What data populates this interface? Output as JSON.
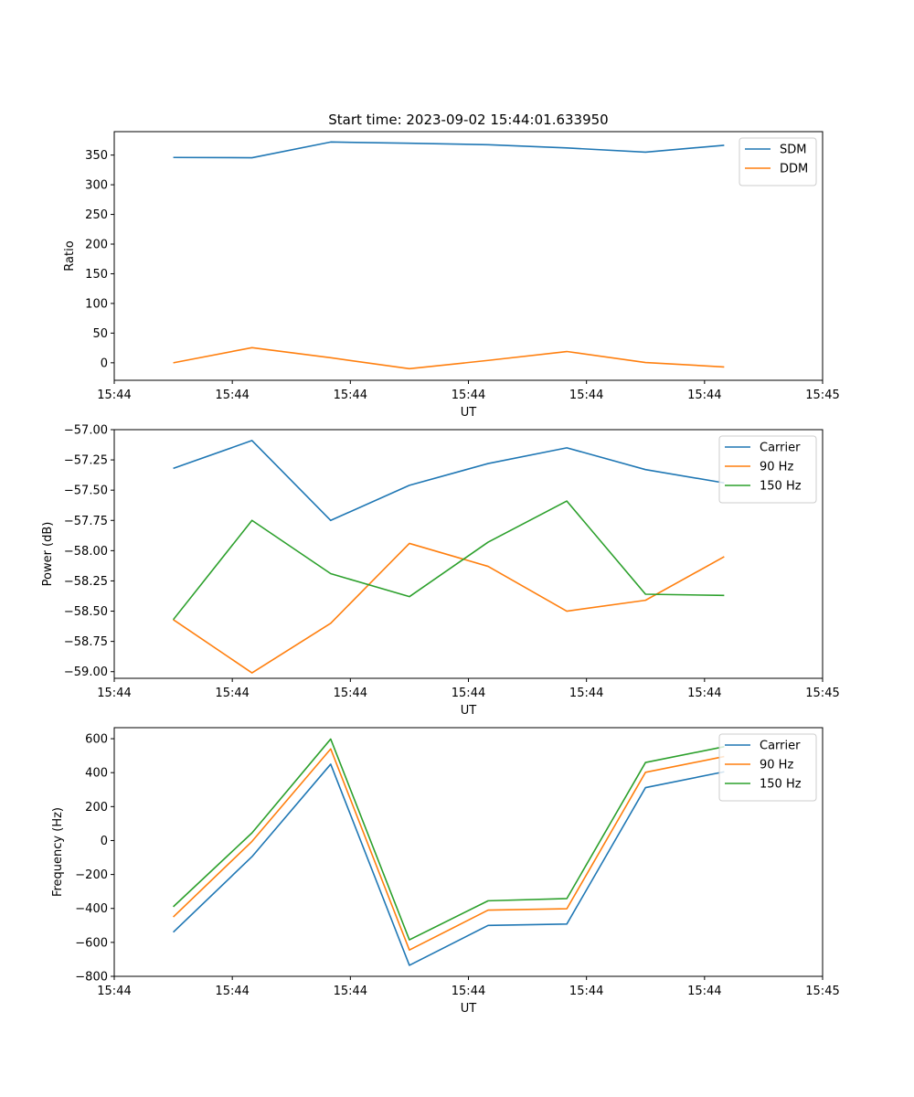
{
  "figure_title": "Start time: 2023-09-02 15:44:01.633950",
  "colors": {
    "c0": "#1f77b4",
    "c1": "#ff7f0e",
    "c2": "#2ca02c"
  },
  "chart_data": [
    {
      "type": "line",
      "xlabel": "UT",
      "ylabel": "Ratio",
      "xlim": [
        -0.75,
        8.25
      ],
      "ylim": [
        -29.5,
        389.5
      ],
      "x": [
        0,
        1,
        2,
        3,
        4,
        5,
        6,
        7
      ],
      "xticks": [
        -0.75,
        0.75,
        2.25,
        3.75,
        5.25,
        6.75,
        8.25
      ],
      "xticklabels": [
        "15:44",
        "15:44",
        "15:44",
        "15:44",
        "15:44",
        "15:44",
        "15:45"
      ],
      "yticks": [
        0,
        50,
        100,
        150,
        200,
        250,
        300,
        350
      ],
      "yticklabels": [
        "0",
        "50",
        "100",
        "150",
        "200",
        "250",
        "300",
        "350"
      ],
      "legend_position": "top-right",
      "series": [
        {
          "name": "SDM",
          "color": "#1f77b4",
          "values": [
            346,
            345.5,
            372,
            370,
            367.5,
            362,
            355,
            366.5
          ]
        },
        {
          "name": "DDM",
          "color": "#ff7f0e",
          "values": [
            0,
            25.5,
            8.5,
            -10,
            4,
            19,
            0.5,
            -7
          ]
        }
      ]
    },
    {
      "type": "line",
      "xlabel": "UT",
      "ylabel": "Power (dB)",
      "xlim": [
        -0.75,
        8.25
      ],
      "ylim": [
        -59.055,
        -57.0
      ],
      "x": [
        0,
        1,
        2,
        3,
        4,
        5,
        6,
        7
      ],
      "xticks": [
        -0.75,
        0.75,
        2.25,
        3.75,
        5.25,
        6.75,
        8.25
      ],
      "xticklabels": [
        "15:44",
        "15:44",
        "15:44",
        "15:44",
        "15:44",
        "15:44",
        "15:45"
      ],
      "yticks": [
        -57.0,
        -57.25,
        -57.5,
        -57.75,
        -58.0,
        -58.25,
        -58.5,
        -58.75,
        -59.0
      ],
      "yticklabels": [
        "−57.00",
        "−57.25",
        "−57.50",
        "−57.75",
        "−58.00",
        "−58.25",
        "−58.50",
        "−58.75",
        "−59.00"
      ],
      "legend_position": "top-right",
      "series": [
        {
          "name": "Carrier",
          "color": "#1f77b4",
          "values": [
            -57.32,
            -57.09,
            -57.75,
            -57.46,
            -57.28,
            -57.15,
            -57.33,
            -57.44
          ]
        },
        {
          "name": "90 Hz",
          "color": "#ff7f0e",
          "values": [
            -58.57,
            -59.01,
            -58.6,
            -57.94,
            -58.13,
            -58.5,
            -58.41,
            -58.05
          ]
        },
        {
          "name": "150 Hz",
          "color": "#2ca02c",
          "values": [
            -58.57,
            -57.75,
            -58.19,
            -58.38,
            -57.93,
            -57.59,
            -58.36,
            -58.37
          ]
        }
      ]
    },
    {
      "type": "line",
      "xlabel": "UT",
      "ylabel": "Frequency (Hz)",
      "xlim": [
        -0.75,
        8.25
      ],
      "ylim": [
        -800,
        665
      ],
      "x": [
        0,
        1,
        2,
        3,
        4,
        5,
        6,
        7
      ],
      "xticks": [
        -0.75,
        0.75,
        2.25,
        3.75,
        5.25,
        6.75,
        8.25
      ],
      "xticklabels": [
        "15:44",
        "15:44",
        "15:44",
        "15:44",
        "15:44",
        "15:44",
        "15:45"
      ],
      "yticks": [
        600,
        400,
        200,
        0,
        -200,
        -400,
        -600,
        -800
      ],
      "yticklabels": [
        "600",
        "400",
        "200",
        "0",
        "−200",
        "−400",
        "−600",
        "−800"
      ],
      "legend_position": "top-right",
      "series": [
        {
          "name": "Carrier",
          "color": "#1f77b4",
          "values": [
            -540,
            -95,
            450,
            -735,
            -500,
            -492,
            312,
            405
          ]
        },
        {
          "name": "90 Hz",
          "color": "#ff7f0e",
          "values": [
            -450,
            -5,
            540,
            -645,
            -410,
            -402,
            402,
            495
          ]
        },
        {
          "name": "150 Hz",
          "color": "#2ca02c",
          "values": [
            -390,
            45,
            598,
            -585,
            -355,
            -342,
            460,
            553
          ]
        }
      ]
    }
  ]
}
